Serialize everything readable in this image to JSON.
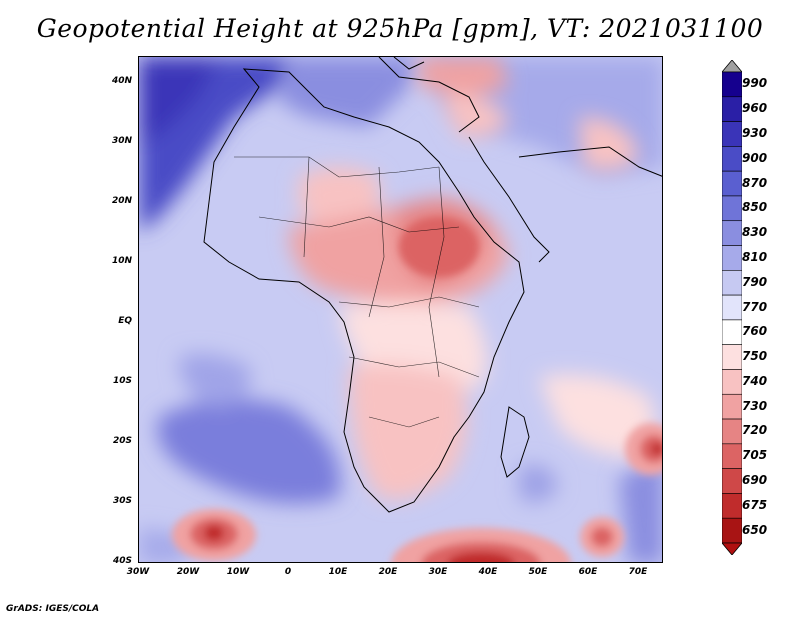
{
  "title": "Geopotential Height at 925hPa [gpm], VT: 2021031100",
  "credit": "GrADS: IGES/COLA",
  "y_axis_labels": [
    "40N",
    "30N",
    "20N",
    "10N",
    "EQ",
    "10S",
    "20S",
    "30S",
    "40S"
  ],
  "x_axis_labels": [
    "30W",
    "20W",
    "10W",
    "0",
    "10E",
    "20E",
    "30E",
    "40E",
    "50E",
    "60E",
    "70E"
  ],
  "colorbar": {
    "labels": [
      "990",
      "960",
      "930",
      "900",
      "870",
      "850",
      "830",
      "810",
      "790",
      "770",
      "760",
      "750",
      "740",
      "730",
      "720",
      "705",
      "690",
      "675",
      "650"
    ],
    "colors": [
      "#15008e",
      "#2a1fa6",
      "#3a34b8",
      "#4a4cc6",
      "#5a5fd0",
      "#6f74d8",
      "#8a8ee0",
      "#a6aaea",
      "#c6c9f2",
      "#e2e4fb",
      "#ffffff",
      "#fde0e0",
      "#f8c2c2",
      "#f0a2a2",
      "#e68484",
      "#dc6464",
      "#cf4848",
      "#c02c2c",
      "#a81414"
    ],
    "top_arrow_color": "#a0a0a0",
    "bottom_arrow_color": "#b01010"
  }
}
